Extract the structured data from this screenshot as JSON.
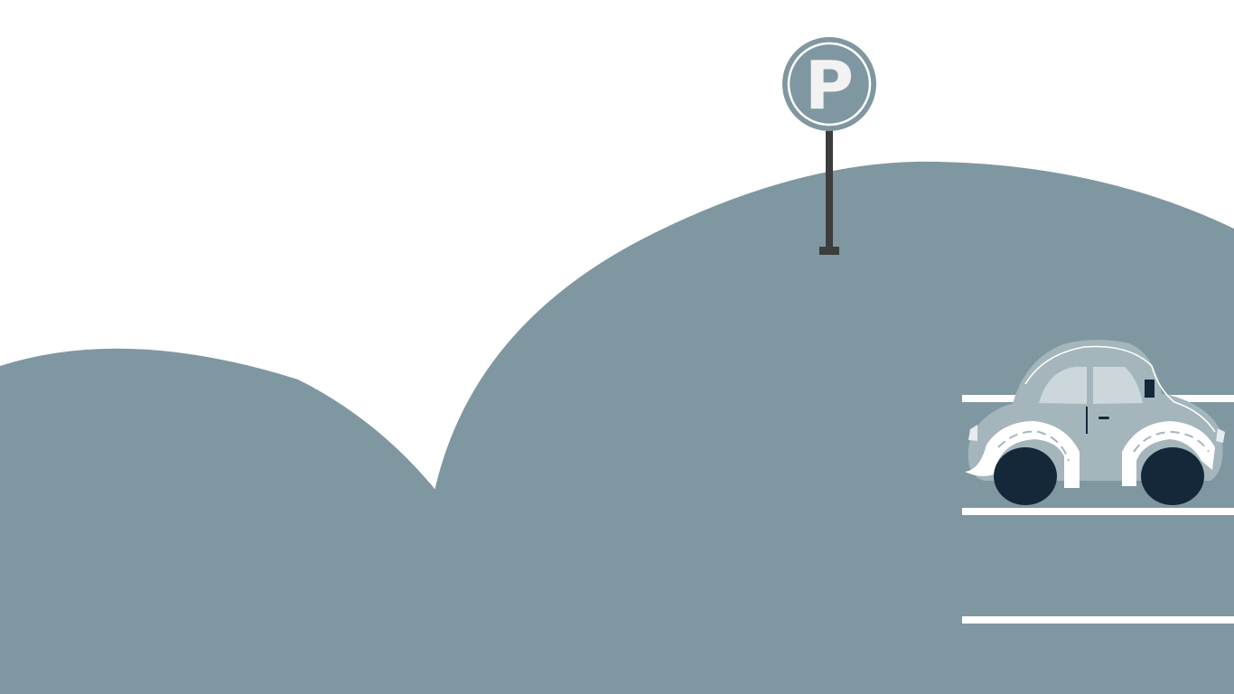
{
  "scene": {
    "colors": {
      "background": "#ffffff",
      "hill": "#7f97a0",
      "lane_line": "#ffffff",
      "pole": "#3d3d3d",
      "sign_face": "#7f97a0",
      "sign_ring": "#ffffff",
      "sign_letter": "#f2f2f2",
      "car_body": "#a4b6bc",
      "car_window": "#cbd7da",
      "car_fender": "#ffffff",
      "tire": "#14283a"
    },
    "parking_sign": {
      "letter": "P",
      "icon": "parking-sign-icon"
    },
    "car": {
      "icon": "car-icon"
    }
  }
}
